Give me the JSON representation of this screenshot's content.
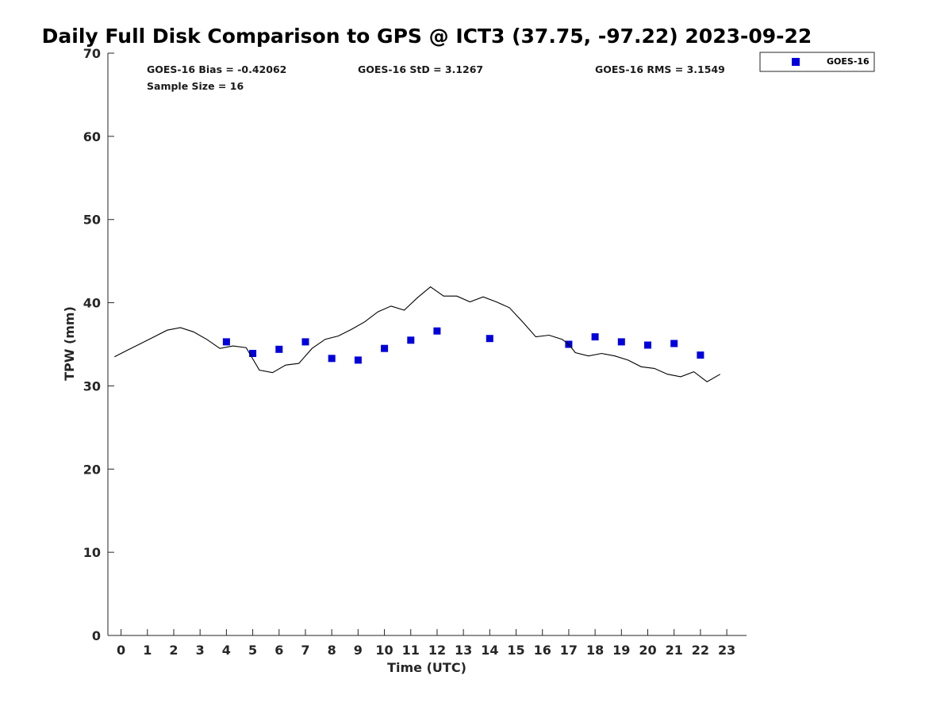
{
  "chart_data": {
    "type": "scatter",
    "title": "Daily Full Disk Comparison to GPS @ ICT3 (37.75, -97.22) 2023-09-22",
    "xlabel": "Time (UTC)",
    "ylabel": "TPW (mm)",
    "xlim": [
      -0.5,
      23.75
    ],
    "ylim": [
      0,
      70
    ],
    "x_ticks": [
      0,
      1,
      2,
      3,
      4,
      5,
      6,
      7,
      8,
      9,
      10,
      11,
      12,
      13,
      14,
      15,
      16,
      17,
      18,
      19,
      20,
      21,
      22,
      23
    ],
    "y_ticks": [
      0,
      10,
      20,
      30,
      40,
      50,
      60,
      70
    ],
    "grid": false,
    "legend_position": "top-right, outside plot",
    "stats": {
      "bias": "GOES-16 Bias = -0.42062",
      "std": "GOES-16 StD = 3.1267",
      "rms": "GOES-16 RMS = 3.1549",
      "sample_size": "Sample Size = 16"
    },
    "series": [
      {
        "name": "GOES-16",
        "kind": "scatter",
        "marker": "square",
        "color": "#0000dd",
        "x": [
          4.0,
          5.0,
          6.0,
          7.0,
          8.0,
          9.0,
          10.0,
          11.0,
          12.0,
          14.0,
          17.0,
          18.0,
          19.0,
          20.0,
          21.0,
          22.0
        ],
        "y": [
          35.3,
          33.9,
          34.4,
          35.3,
          33.3,
          33.1,
          34.5,
          35.5,
          36.6,
          35.7,
          35.0,
          35.9,
          35.3,
          34.9,
          35.1,
          33.7
        ]
      },
      {
        "kind": "line",
        "color": "#000000",
        "x": [
          -0.25,
          0.25,
          0.75,
          1.25,
          1.75,
          2.25,
          2.75,
          3.25,
          3.75,
          4.25,
          4.75,
          5.25,
          5.75,
          6.25,
          6.75,
          7.25,
          7.75,
          8.25,
          8.75,
          9.25,
          9.75,
          10.25,
          10.75,
          11.25,
          11.75,
          12.25,
          12.75,
          13.25,
          13.75,
          14.25,
          14.75,
          15.25,
          15.75,
          16.25,
          16.75,
          17.0,
          17.25,
          17.75,
          18.25,
          18.75,
          19.25,
          19.75,
          20.25,
          20.75,
          21.25,
          21.75,
          22.25,
          22.75
        ],
        "y": [
          33.5,
          34.3,
          35.1,
          35.9,
          36.7,
          37.0,
          36.5,
          35.6,
          34.5,
          34.8,
          34.6,
          31.9,
          31.6,
          32.5,
          32.7,
          34.5,
          35.6,
          36.0,
          36.8,
          37.7,
          38.9,
          39.6,
          39.1,
          40.6,
          41.9,
          40.8,
          40.8,
          40.1,
          40.7,
          40.1,
          39.4,
          37.7,
          35.9,
          36.1,
          35.6,
          35.0,
          34.0,
          33.6,
          33.9,
          33.6,
          33.1,
          32.3,
          32.1,
          31.4,
          31.1,
          31.7,
          30.5,
          31.4
        ]
      }
    ]
  }
}
